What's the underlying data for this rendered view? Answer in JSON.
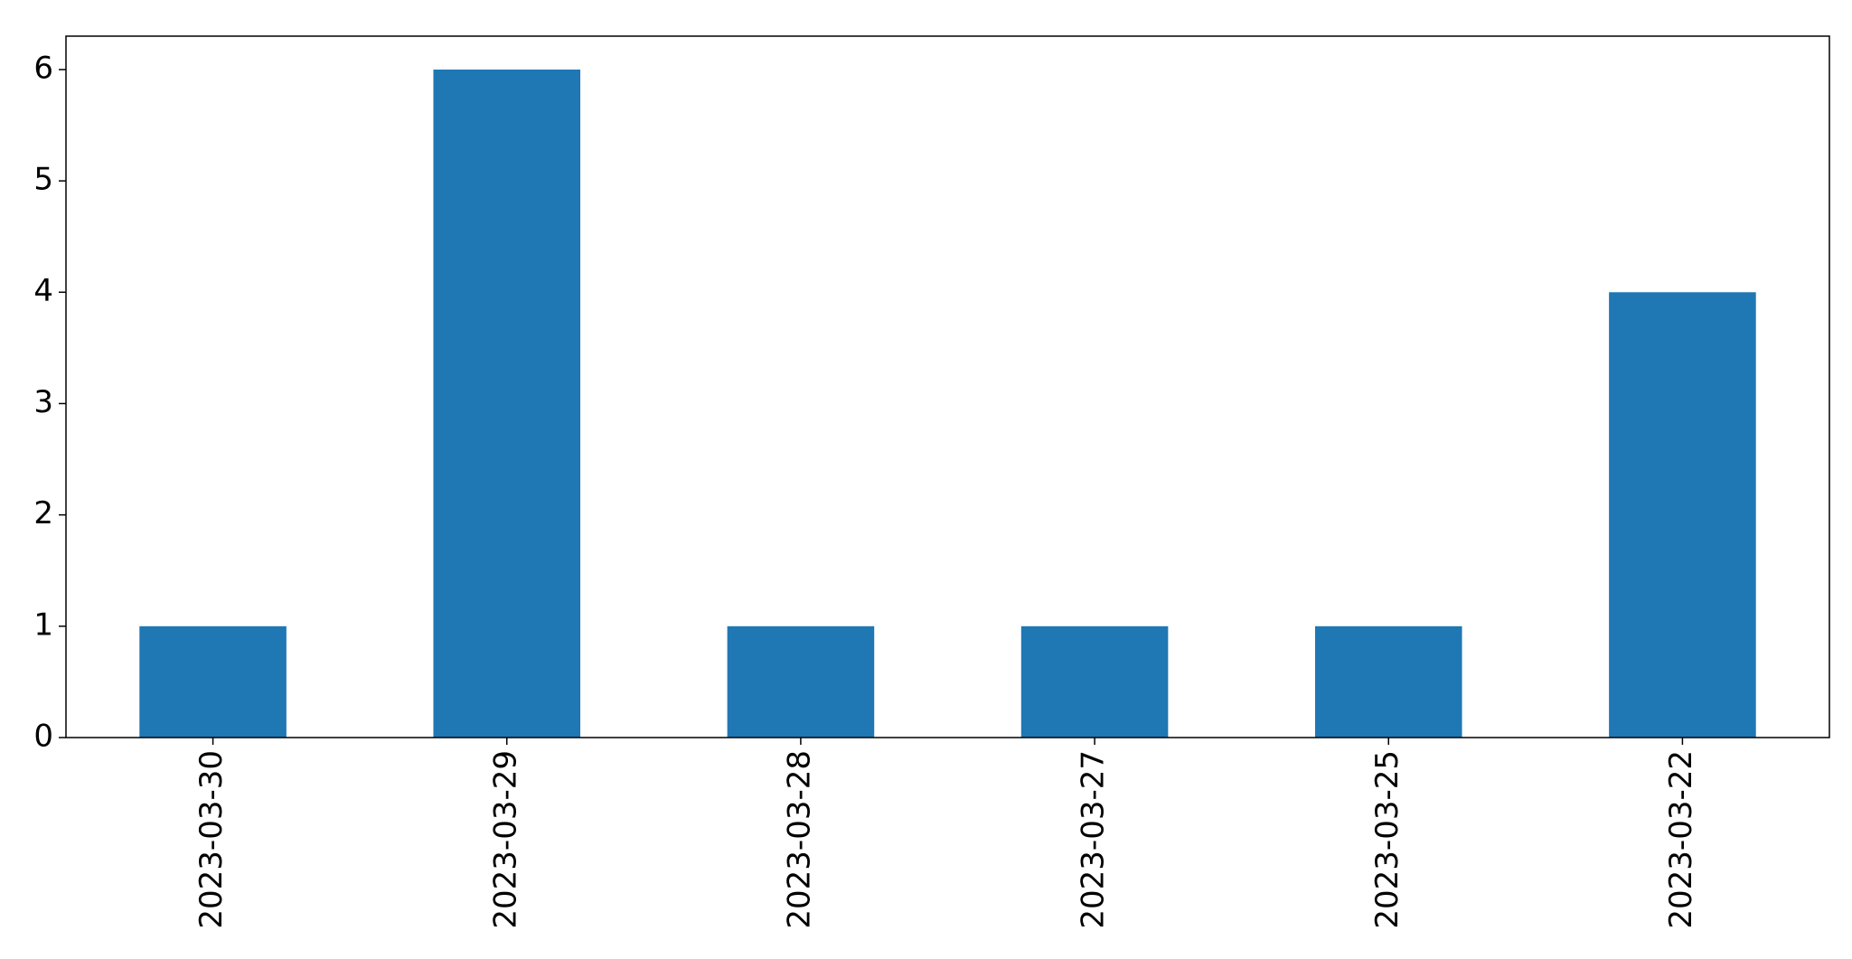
{
  "chart_data": {
    "type": "bar",
    "title": "",
    "xlabel": "",
    "ylabel": "",
    "categories": [
      "2023-03-30",
      "2023-03-29",
      "2023-03-28",
      "2023-03-27",
      "2023-03-25",
      "2023-03-22"
    ],
    "values": [
      1,
      6,
      1,
      1,
      1,
      4
    ],
    "ylim": [
      0,
      6.3
    ],
    "yticks": [
      0,
      1,
      2,
      3,
      4,
      5,
      6
    ],
    "grid": false,
    "legend": "none",
    "bar_color": "#1f77b4"
  }
}
